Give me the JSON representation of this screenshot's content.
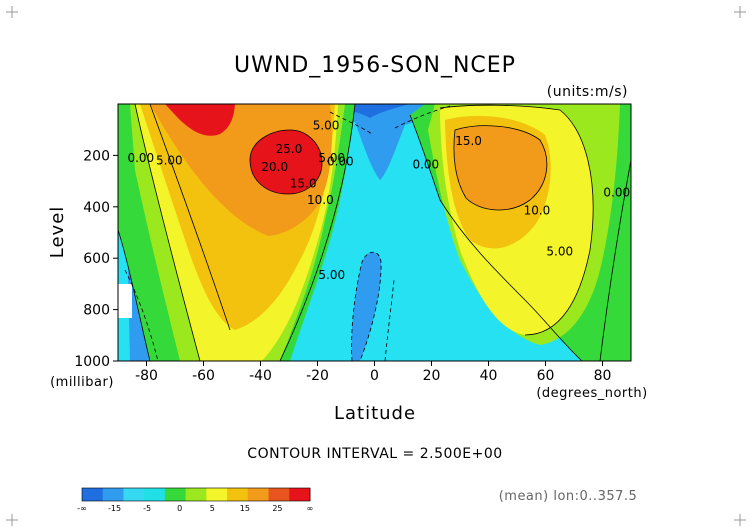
{
  "chart_data": {
    "type": "contour",
    "title": "UWND_1956-SON_NCEP",
    "units_label": "(units:m/s)",
    "xlabel": "Latitude",
    "ylabel": "Level",
    "x_unit_label": "(degrees_north)",
    "y_unit_label": "(millibar)",
    "xlim": [
      -90,
      90
    ],
    "ylim": [
      1000,
      0
    ],
    "x_ticks": [
      -80,
      -60,
      -40,
      -20,
      0,
      20,
      40,
      60,
      80
    ],
    "x_tick_labels": [
      "-80",
      "-60",
      "-40",
      "-20",
      "0",
      "20",
      "40",
      "60",
      "80"
    ],
    "y_ticks": [
      200,
      400,
      600,
      800,
      1000
    ],
    "y_tick_labels": [
      "200",
      "400",
      "600",
      "800",
      "1000"
    ],
    "contour_interval_text": "CONTOUR INTERVAL = 2.500E+00",
    "footnote": "(mean) lon:0..357.5",
    "colorbar": {
      "tick_labels": [
        "-∞",
        "-15",
        "-5",
        "0",
        "5",
        "15",
        "25",
        "∞"
      ],
      "colors": [
        "#1f6fe0",
        "#2f9cf0",
        "#36d8f2",
        "#20e0e6",
        "#35d93a",
        "#9be81f",
        "#f4f42a",
        "#f2c20f",
        "#f29a1a",
        "#e8551e",
        "#e6141a"
      ]
    },
    "contour_labels": [
      {
        "text": "25.0",
        "x": -30,
        "y": 190
      },
      {
        "text": "20.0",
        "x": -35,
        "y": 260
      },
      {
        "text": "15.0",
        "x": -25,
        "y": 325
      },
      {
        "text": "10.0",
        "x": -19,
        "y": 390
      },
      {
        "text": "5.00",
        "x": -15,
        "y": 225
      },
      {
        "text": "0.00",
        "x": -12,
        "y": 240
      },
      {
        "text": "5.00",
        "x": -17,
        "y": 100
      },
      {
        "text": "0.00",
        "x": -82,
        "y": 225
      },
      {
        "text": "5.00",
        "x": -72,
        "y": 235
      },
      {
        "text": "5.00",
        "x": -15,
        "y": 680
      },
      {
        "text": "0.00",
        "x": 18,
        "y": 250
      },
      {
        "text": "15.0",
        "x": 33,
        "y": 160
      },
      {
        "text": "10.0",
        "x": 57,
        "y": 430
      },
      {
        "text": "5.00",
        "x": 65,
        "y": 590
      },
      {
        "text": "0.00",
        "x": 85,
        "y": 360
      }
    ]
  }
}
